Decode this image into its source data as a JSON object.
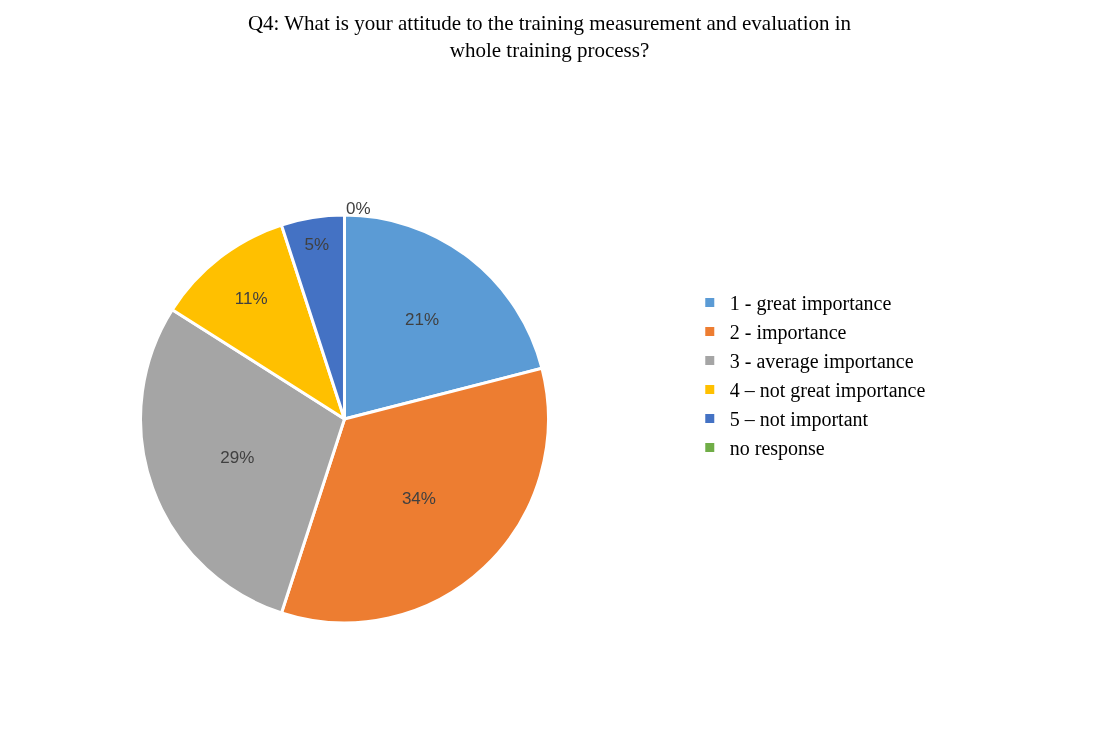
{
  "chart_data": {
    "type": "pie",
    "title": "Q4: What is your attitude to the training measurement and evaluation in whole training process?",
    "categories": [
      "1 - great importance",
      "2 - importance",
      "3 - average importance",
      "4 – not great importance",
      "5 – not important",
      "no response"
    ],
    "values": [
      21,
      34,
      29,
      11,
      5,
      0
    ],
    "value_labels": [
      "21%",
      "34%",
      "29%",
      "11%",
      "5%",
      "0%"
    ],
    "colors": [
      "#5b9bd5",
      "#ed7d31",
      "#a5a5a5",
      "#ffc000",
      "#4472c4",
      "#70ad47"
    ],
    "legend": "right"
  }
}
